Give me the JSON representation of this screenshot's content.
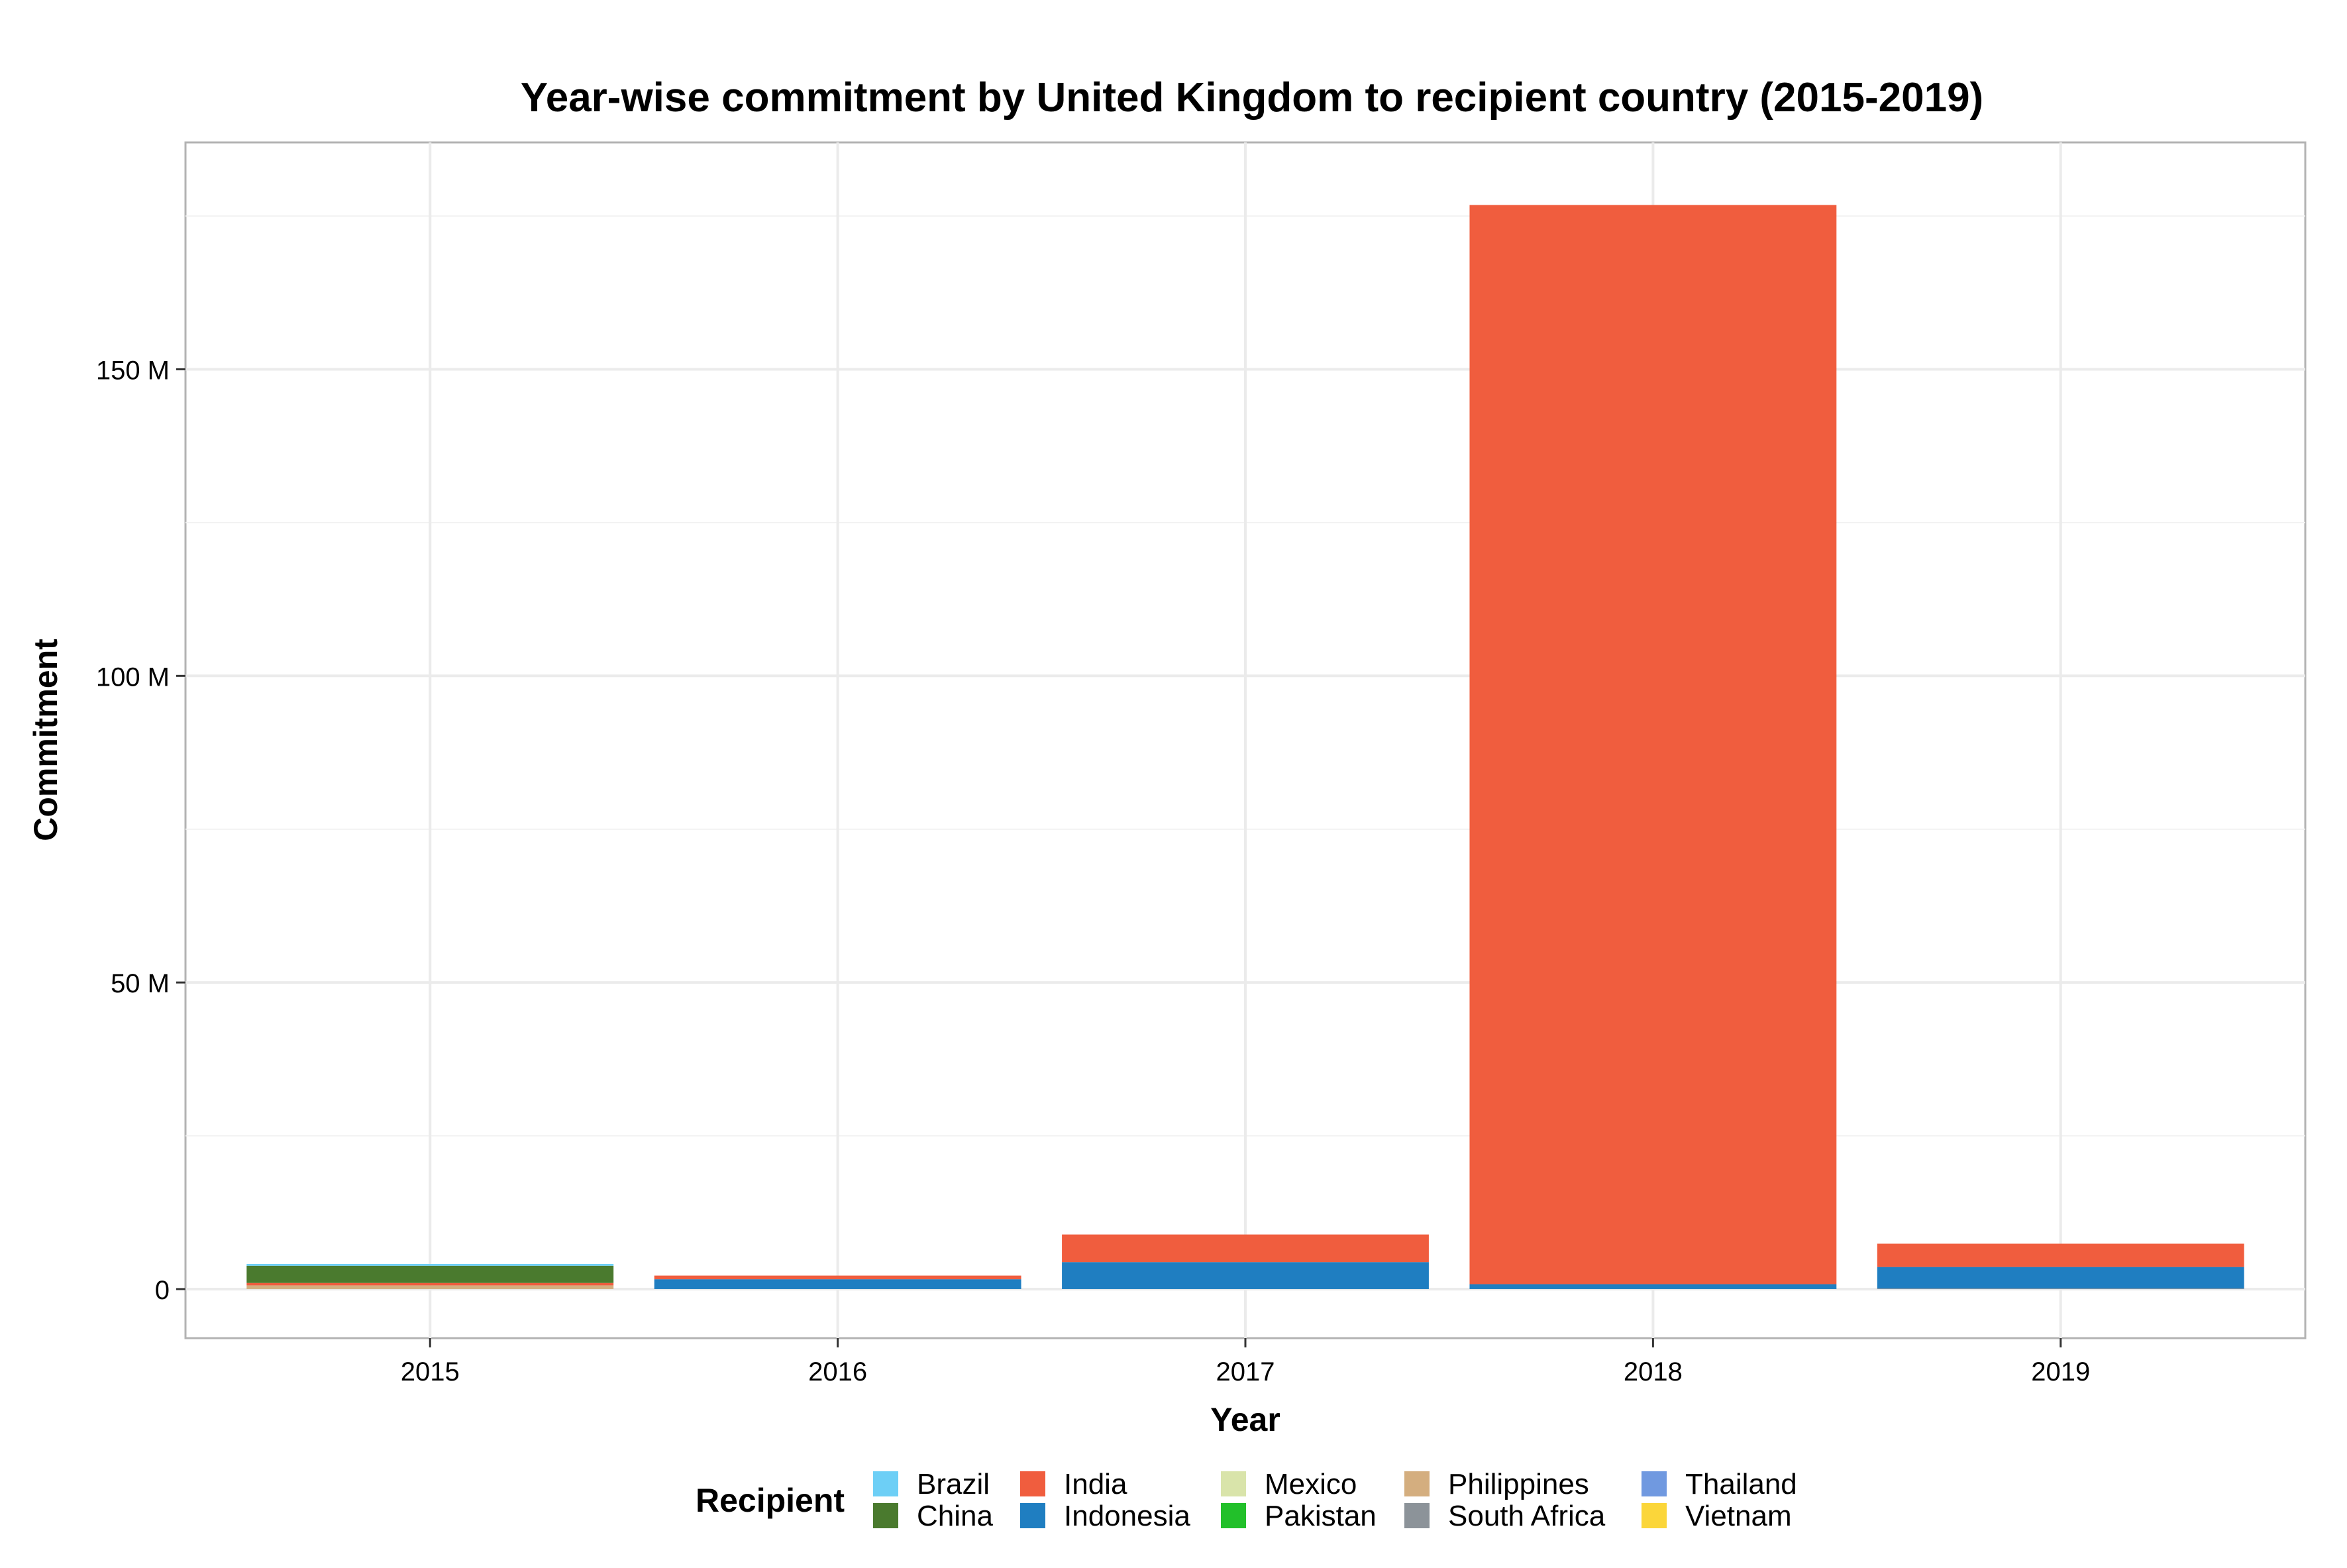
{
  "chart_data": {
    "type": "bar",
    "stacked": true,
    "title": "Year-wise commitment by United Kingdom to recipient country (2015-2019)",
    "xlabel": "Year",
    "ylabel": "Commitment",
    "categories": [
      "2015",
      "2016",
      "2017",
      "2018",
      "2019"
    ],
    "ylim": [
      -8,
      187
    ],
    "yticks": [
      {
        "value": 0,
        "label": "0"
      },
      {
        "value": 50,
        "label": "50 M"
      },
      {
        "value": 100,
        "label": "100 M"
      },
      {
        "value": 150,
        "label": "150 M"
      }
    ],
    "value_unit": "millions",
    "grid": true,
    "legend": {
      "title": "Recipient",
      "position": "bottom"
    },
    "series": [
      {
        "name": "Brazil",
        "color": "#6DCFF6",
        "values": [
          0.3,
          0,
          0,
          0,
          0
        ]
      },
      {
        "name": "China",
        "color": "#4A7A2E",
        "values": [
          2.8,
          0,
          0,
          0,
          0
        ]
      },
      {
        "name": "India",
        "color": "#F05D3E",
        "values": [
          0.4,
          0.6,
          4.5,
          176,
          3.8
        ]
      },
      {
        "name": "Indonesia",
        "color": "#1F7EC1",
        "values": [
          0,
          1.6,
          4.4,
          0.8,
          3.5
        ]
      },
      {
        "name": "Mexico",
        "color": "#D9E4AA",
        "values": [
          0,
          0,
          0,
          0,
          0
        ]
      },
      {
        "name": "Pakistan",
        "color": "#22C02A",
        "values": [
          0,
          0,
          0,
          0,
          0
        ]
      },
      {
        "name": "Philippines",
        "color": "#D4AE7F",
        "values": [
          0.6,
          0,
          0,
          0,
          0
        ]
      },
      {
        "name": "South Africa",
        "color": "#8C9399",
        "values": [
          0,
          0,
          0,
          0,
          0.1
        ]
      },
      {
        "name": "Thailand",
        "color": "#7099E0",
        "values": [
          0,
          0,
          0,
          0,
          0
        ]
      },
      {
        "name": "Vietnam",
        "color": "#FBD63A",
        "values": [
          0,
          0,
          0,
          0,
          0
        ]
      }
    ]
  }
}
